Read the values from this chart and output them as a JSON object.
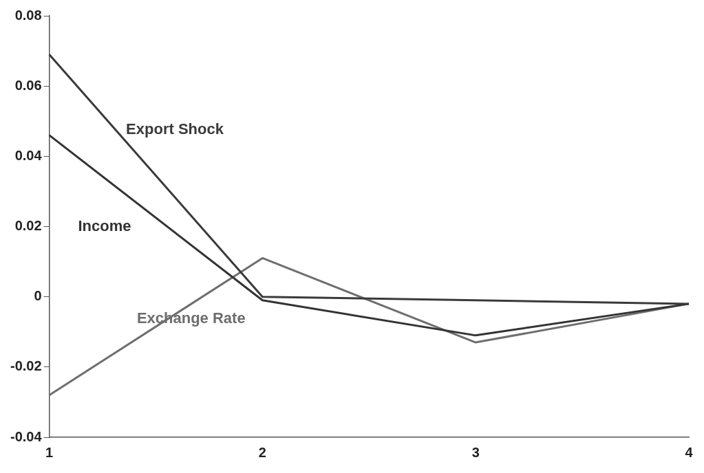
{
  "chart_data": {
    "type": "line",
    "categories": [
      "1",
      "2",
      "3",
      "4"
    ],
    "series": [
      {
        "name": "Export Shock",
        "color": "#3a3a3a",
        "values": [
          0.069,
          0.0,
          -0.001,
          -0.002
        ]
      },
      {
        "name": "Income",
        "color": "#333333",
        "values": [
          0.046,
          -0.001,
          -0.011,
          -0.002
        ]
      },
      {
        "name": "Exchange Rate",
        "color": "#6e6e6e",
        "values": [
          -0.028,
          0.011,
          -0.013,
          -0.002
        ]
      }
    ],
    "ylim": [
      -0.04,
      0.08
    ],
    "yticks": [
      -0.04,
      -0.02,
      0,
      0.02,
      0.04,
      0.06,
      0.08
    ],
    "grid": false,
    "legend": false,
    "marker": "none",
    "line_style": "solid"
  }
}
